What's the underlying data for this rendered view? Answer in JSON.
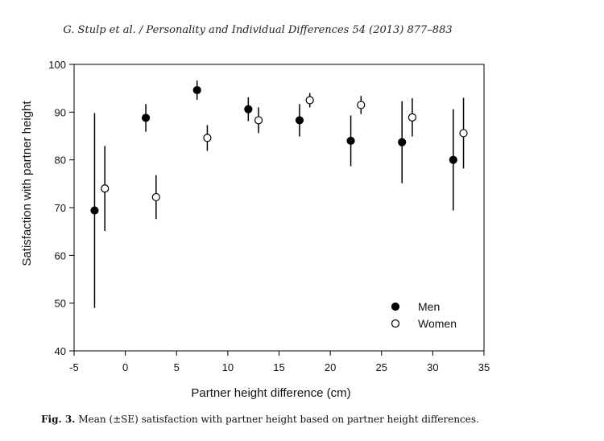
{
  "header": "G. Stulp et al. / Personality and Individual Differences 54 (2013) 877–883",
  "caption": {
    "label": "Fig. 3.",
    "text": "Mean (±SE) satisfaction with partner height based on partner height differences."
  },
  "chart_data": {
    "type": "scatter",
    "title": "",
    "xlabel": "Partner height difference (cm)",
    "ylabel": "Satisfaction with partner height",
    "xlim": [
      -5,
      35
    ],
    "ylim": [
      40,
      100
    ],
    "xticks": [
      -5,
      0,
      5,
      10,
      15,
      20,
      25,
      30,
      35
    ],
    "yticks": [
      40,
      50,
      60,
      70,
      80,
      90,
      100
    ],
    "grid": false,
    "legend": "bottom-right",
    "series": [
      {
        "name": "Men",
        "marker": "filled-circle",
        "color": "#000000",
        "points": [
          {
            "x": -3,
            "y": 69.4,
            "lo": 49.0,
            "hi": 89.8
          },
          {
            "x": 2,
            "y": 88.8,
            "lo": 85.9,
            "hi": 91.7
          },
          {
            "x": 7,
            "y": 94.6,
            "lo": 92.6,
            "hi": 96.6
          },
          {
            "x": 12,
            "y": 90.6,
            "lo": 88.1,
            "hi": 93.1
          },
          {
            "x": 17,
            "y": 88.3,
            "lo": 84.9,
            "hi": 91.7
          },
          {
            "x": 22,
            "y": 84.0,
            "lo": 78.7,
            "hi": 89.3
          },
          {
            "x": 27,
            "y": 83.7,
            "lo": 75.1,
            "hi": 92.3
          },
          {
            "x": 32,
            "y": 80.0,
            "lo": 69.4,
            "hi": 90.6
          }
        ]
      },
      {
        "name": "Women",
        "marker": "open-circle",
        "color": "#000000",
        "points": [
          {
            "x": -2,
            "y": 74.0,
            "lo": 65.1,
            "hi": 82.9
          },
          {
            "x": 3,
            "y": 72.2,
            "lo": 67.6,
            "hi": 76.8
          },
          {
            "x": 8,
            "y": 84.6,
            "lo": 81.9,
            "hi": 87.3
          },
          {
            "x": 13,
            "y": 88.3,
            "lo": 85.6,
            "hi": 91.0
          },
          {
            "x": 18,
            "y": 92.5,
            "lo": 91.0,
            "hi": 94.0
          },
          {
            "x": 23,
            "y": 91.5,
            "lo": 89.6,
            "hi": 93.4
          },
          {
            "x": 28,
            "y": 88.9,
            "lo": 84.9,
            "hi": 92.9
          },
          {
            "x": 33,
            "y": 85.6,
            "lo": 78.2,
            "hi": 93.0
          }
        ]
      }
    ]
  }
}
